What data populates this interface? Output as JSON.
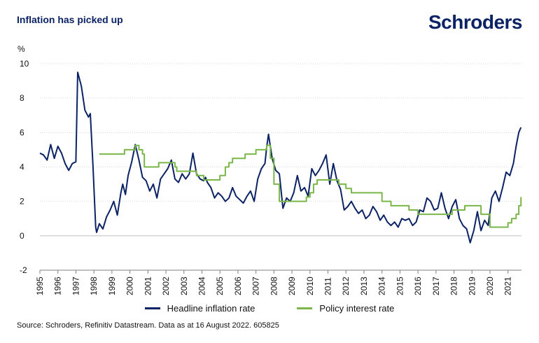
{
  "header": {
    "title": "Inflation has picked up",
    "brand": "Schroders"
  },
  "source": "Source: Schroders, Refinitiv Datastream. Data as at 16 August 2022. 605825",
  "colors": {
    "inflation": "#0b2265",
    "policy": "#7ab648",
    "grid": "#d9d9d9"
  },
  "chart_data": {
    "type": "line",
    "title": "Inflation has picked up",
    "ylabel": "%",
    "xlabel": "",
    "ylim": [
      -2,
      10
    ],
    "xlim": [
      1995,
      2021.75
    ],
    "yticks": [
      -2,
      0,
      2,
      4,
      6,
      8,
      10
    ],
    "xticks": [
      "1995",
      "1996",
      "1997",
      "1998",
      "1999",
      "2000",
      "2001",
      "2002",
      "2003",
      "2004",
      "2005",
      "2006",
      "2007",
      "2008",
      "2009",
      "2010",
      "2011",
      "2012",
      "2013",
      "2014",
      "2015",
      "2016",
      "2017",
      "2018",
      "2019",
      "2020",
      "2021"
    ],
    "grid": "horizontal",
    "legend_position": "bottom",
    "series": [
      {
        "name": "Headline inflation rate",
        "x": [
          1995.0,
          1995.2,
          1995.4,
          1995.6,
          1995.8,
          1996.0,
          1996.2,
          1996.4,
          1996.6,
          1996.8,
          1997.0,
          1997.1,
          1997.3,
          1997.5,
          1997.7,
          1997.8,
          1997.95,
          1998.1,
          1998.15,
          1998.3,
          1998.5,
          1998.7,
          1998.9,
          1999.1,
          1999.3,
          1999.5,
          1999.6,
          1999.75,
          1999.9,
          2000.1,
          2000.3,
          2000.5,
          2000.7,
          2000.9,
          2001.1,
          2001.3,
          2001.5,
          2001.7,
          2001.9,
          2002.1,
          2002.3,
          2002.5,
          2002.7,
          2002.9,
          2003.1,
          2003.3,
          2003.5,
          2003.7,
          2003.9,
          2004.1,
          2004.2,
          2004.3,
          2004.5,
          2004.7,
          2004.9,
          2005.1,
          2005.3,
          2005.5,
          2005.7,
          2005.9,
          2006.1,
          2006.3,
          2006.5,
          2006.7,
          2006.9,
          2007.1,
          2007.3,
          2007.5,
          2007.6,
          2007.7,
          2007.9,
          2008.1,
          2008.3,
          2008.5,
          2008.7,
          2008.9,
          2009.1,
          2009.3,
          2009.5,
          2009.7,
          2009.9,
          2010.1,
          2010.3,
          2010.5,
          2010.7,
          2010.9,
          2011.1,
          2011.3,
          2011.5,
          2011.7,
          2011.9,
          2012.1,
          2012.3,
          2012.5,
          2012.7,
          2012.9,
          2013.1,
          2013.3,
          2013.5,
          2013.7,
          2013.9,
          2014.1,
          2014.3,
          2014.5,
          2014.7,
          2014.9,
          2015.1,
          2015.3,
          2015.5,
          2015.7,
          2015.9,
          2016.1,
          2016.3,
          2016.5,
          2016.7,
          2016.9,
          2017.1,
          2017.3,
          2017.5,
          2017.7,
          2017.9,
          2018.1,
          2018.3,
          2018.5,
          2018.7,
          2018.9,
          2019.1,
          2019.3,
          2019.5,
          2019.7,
          2019.9,
          2020.1,
          2020.3,
          2020.5,
          2020.7,
          2020.9,
          2021.1,
          2021.3,
          2021.45,
          2021.6,
          2021.72
        ],
        "values": [
          4.8,
          4.7,
          4.4,
          5.3,
          4.5,
          5.2,
          4.8,
          4.2,
          3.8,
          4.2,
          4.3,
          9.5,
          8.7,
          7.3,
          6.9,
          7.1,
          4.0,
          0.5,
          0.2,
          0.7,
          0.4,
          1.1,
          1.5,
          2.0,
          1.2,
          2.5,
          3.0,
          2.4,
          3.5,
          4.3,
          5.3,
          4.4,
          3.4,
          3.2,
          2.6,
          3.0,
          2.2,
          3.3,
          3.6,
          3.9,
          4.4,
          3.3,
          3.1,
          3.6,
          3.3,
          3.6,
          4.8,
          3.6,
          3.3,
          3.2,
          3.4,
          3.1,
          2.8,
          2.2,
          2.5,
          2.3,
          2.0,
          2.2,
          2.8,
          2.3,
          2.1,
          1.9,
          2.3,
          2.6,
          2.0,
          3.3,
          3.9,
          4.2,
          5.2,
          5.9,
          4.5,
          3.8,
          3.6,
          1.6,
          2.2,
          2.0,
          2.5,
          3.5,
          2.6,
          2.8,
          2.3,
          3.9,
          3.5,
          3.8,
          4.2,
          4.7,
          3.0,
          4.2,
          3.2,
          2.7,
          1.5,
          1.7,
          2.0,
          1.6,
          1.3,
          1.5,
          1.0,
          1.2,
          1.7,
          1.4,
          0.9,
          1.2,
          0.8,
          0.6,
          0.8,
          0.5,
          1.0,
          0.9,
          1.0,
          0.6,
          0.8,
          1.5,
          1.4,
          2.2,
          2.0,
          1.5,
          1.6,
          2.5,
          1.6,
          1.0,
          1.7,
          2.1,
          1.0,
          0.6,
          0.4,
          -0.4,
          0.3,
          1.4,
          0.3,
          0.9,
          0.6,
          2.2,
          2.6,
          2.0,
          2.8,
          3.7,
          3.5,
          4.2,
          5.2,
          6.0,
          6.3
        ]
      },
      {
        "name": "Policy interest rate",
        "x": [
          1998.3,
          1999.0,
          1999.7,
          2000.0,
          2000.3,
          2000.5,
          2000.7,
          2000.8,
          2001.5,
          2001.6,
          2002.3,
          2002.5,
          2002.6,
          2003.6,
          2003.7,
          2004.0,
          2004.1,
          2004.8,
          2005.0,
          2005.3,
          2005.5,
          2005.7,
          2005.9,
          2006.2,
          2006.4,
          2007.0,
          2007.2,
          2007.4,
          2007.6,
          2007.8,
          2008.0,
          2008.3,
          2008.6,
          2009.5,
          2009.8,
          2010.0,
          2010.2,
          2010.4,
          2011.4,
          2011.6,
          2012.0,
          2012.3,
          2013.4,
          2014.0,
          2014.5,
          2015.5,
          2016.0,
          2017.0,
          2017.9,
          2018.6,
          2019.0,
          2019.5,
          2020.0,
          2020.6,
          2020.8,
          2021.0,
          2021.2,
          2021.45,
          2021.6,
          2021.72
        ],
        "values": [
          4.75,
          4.75,
          5.0,
          5.0,
          5.25,
          5.0,
          4.75,
          4.0,
          4.0,
          4.25,
          4.25,
          4.0,
          3.75,
          3.75,
          3.5,
          3.5,
          3.25,
          3.25,
          3.5,
          4.0,
          4.25,
          4.5,
          4.5,
          4.5,
          4.75,
          5.0,
          5.0,
          5.0,
          5.25,
          4.5,
          3.0,
          2.0,
          2.0,
          2.0,
          2.25,
          2.5,
          3.0,
          3.25,
          3.25,
          3.0,
          2.75,
          2.5,
          2.5,
          2.0,
          1.75,
          1.5,
          1.25,
          1.25,
          1.5,
          1.75,
          1.75,
          1.25,
          0.5,
          0.5,
          0.5,
          0.75,
          1.0,
          1.25,
          1.75,
          2.25
        ]
      }
    ]
  }
}
